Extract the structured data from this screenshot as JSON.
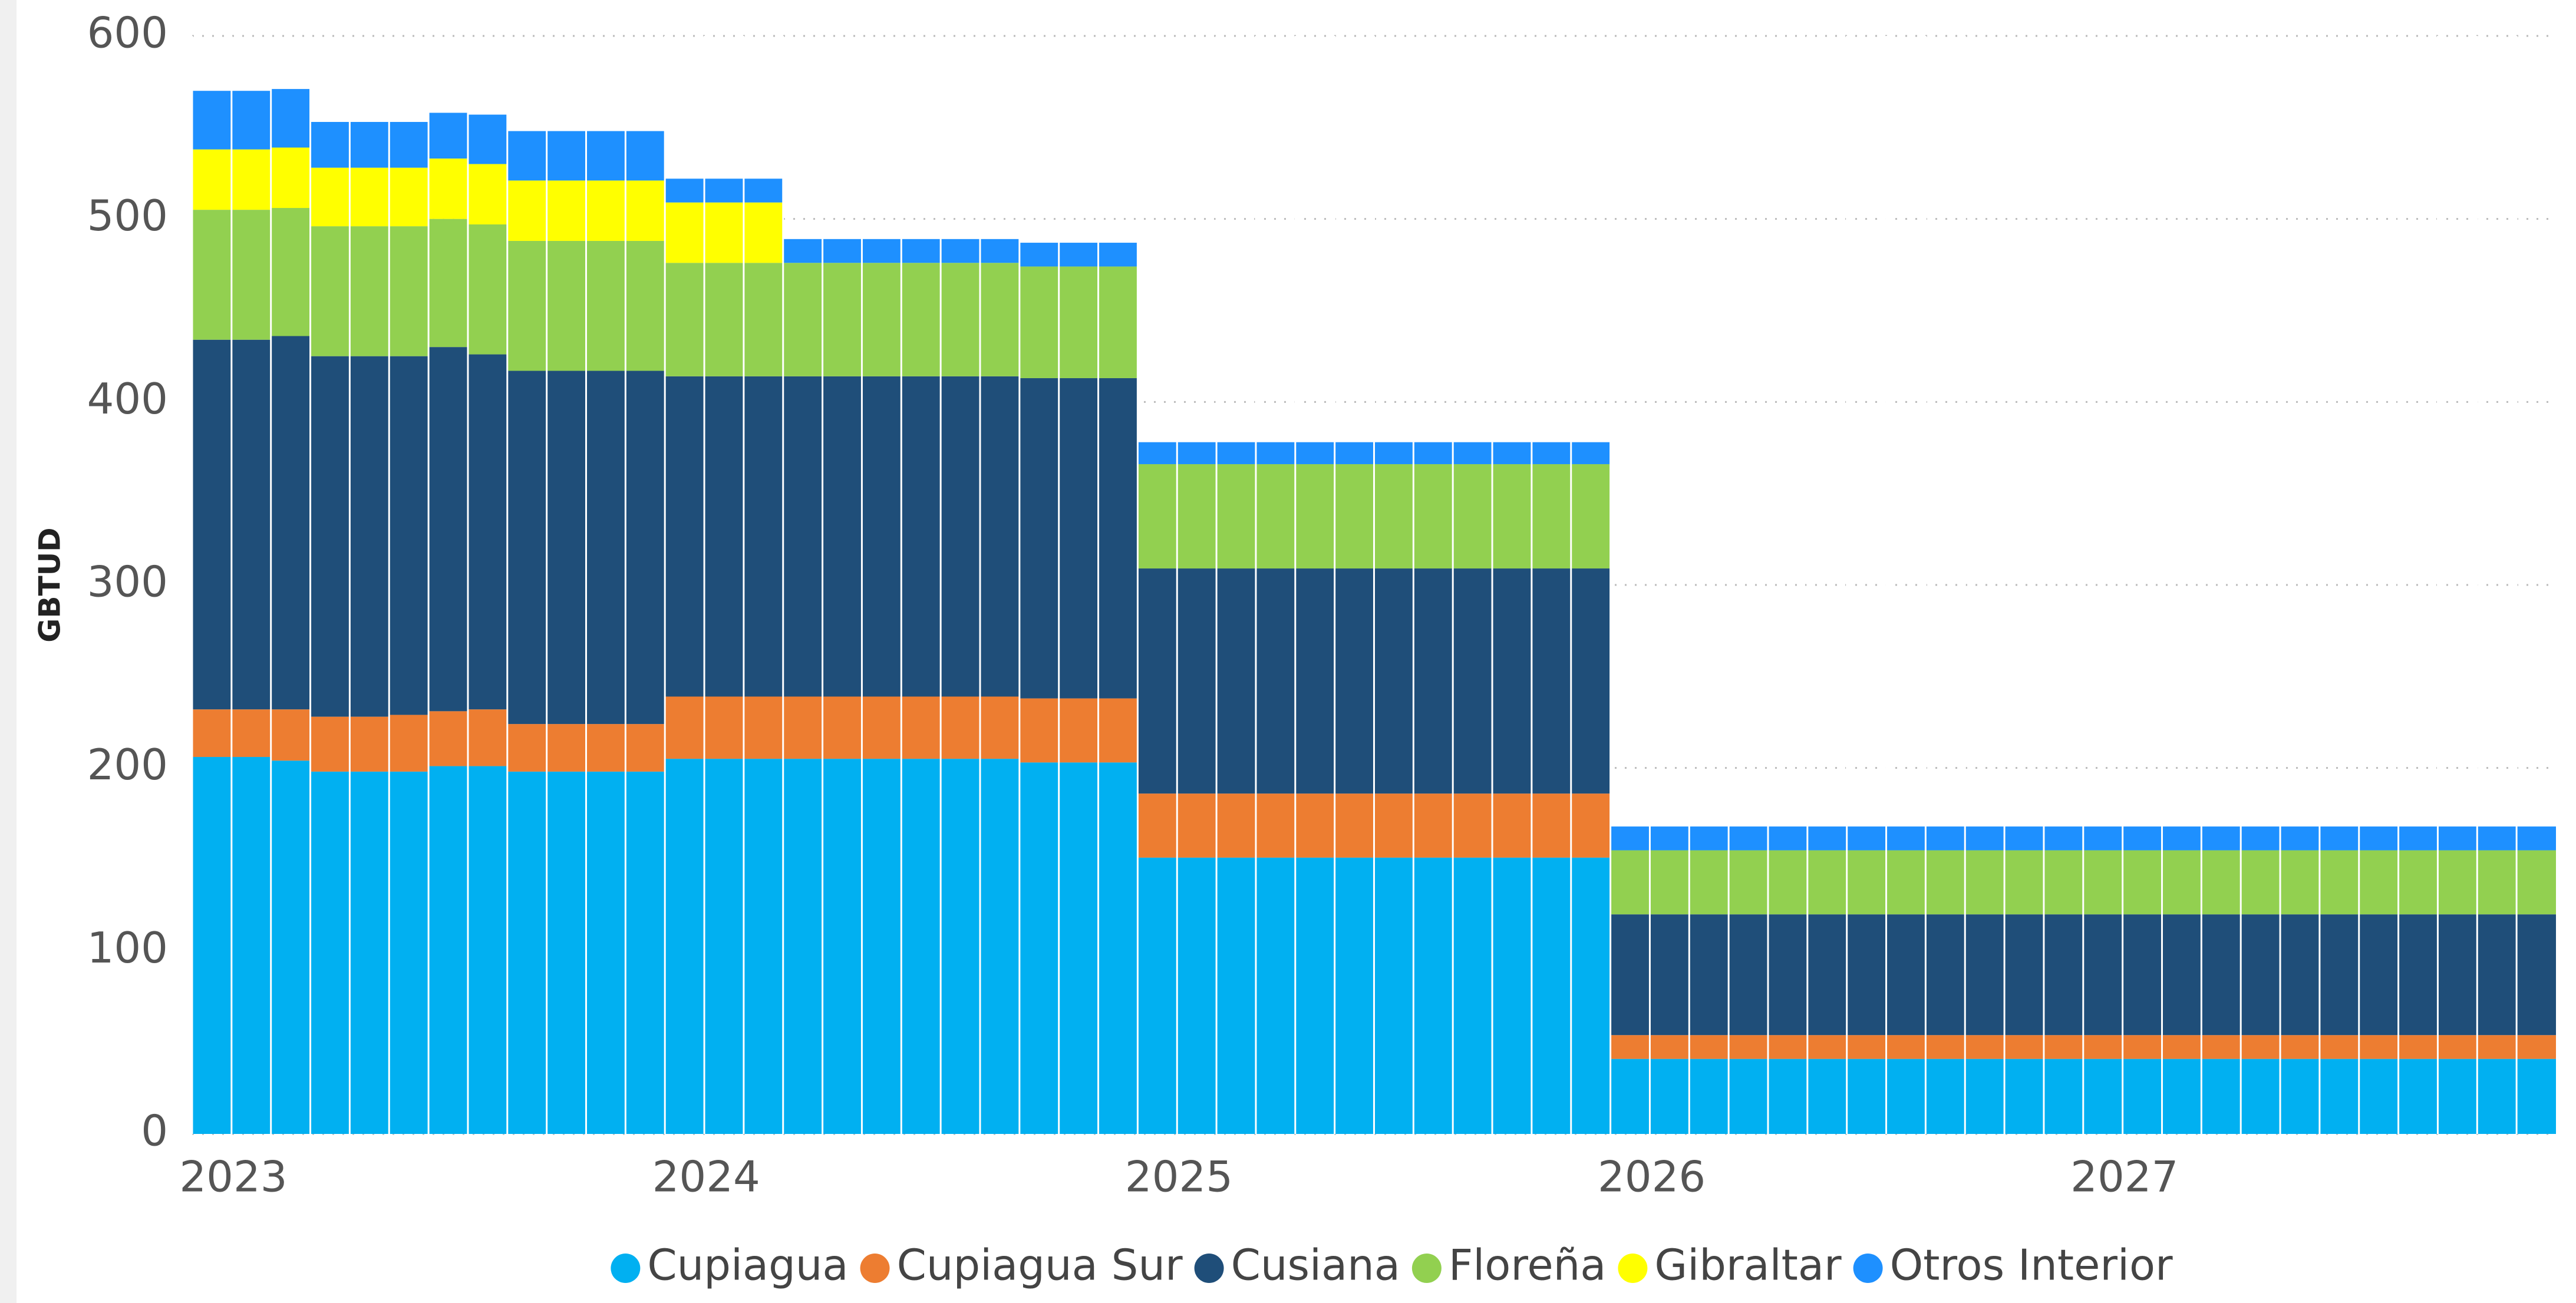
{
  "chart_data": {
    "type": "stacked_bar",
    "y_label": "GBTUD",
    "categories": [
      "2023",
      null,
      null,
      null,
      null,
      null,
      null,
      null,
      null,
      null,
      null,
      null,
      "2024",
      null,
      null,
      null,
      null,
      null,
      null,
      null,
      null,
      null,
      null,
      null,
      "2025",
      null,
      null,
      null,
      null,
      null,
      null,
      null,
      null,
      null,
      null,
      null,
      "2026",
      null,
      null,
      null,
      null,
      null,
      null,
      null,
      null,
      null,
      null,
      null,
      "2027",
      null,
      null,
      null,
      null,
      null,
      null,
      null,
      null,
      null,
      null,
      null
    ],
    "series": [
      {
        "name": "Cupiagua",
        "color": "#01B0F1",
        "values": [
          206,
          206,
          204,
          198,
          198,
          198,
          201,
          201,
          198,
          198,
          198,
          198,
          205,
          205,
          205,
          205,
          205,
          205,
          205,
          205,
          205,
          203,
          203,
          203,
          151,
          151,
          151,
          151,
          151,
          151,
          151,
          151,
          151,
          151,
          151,
          151,
          41,
          41,
          41,
          41,
          41,
          41,
          41,
          41,
          41,
          41,
          41,
          41,
          41,
          41,
          41,
          41,
          41,
          41,
          41,
          41,
          41,
          41,
          41,
          41
        ]
      },
      {
        "name": "Cupiagua Sur",
        "color": "#ED7D31",
        "values": [
          26,
          26,
          28,
          30,
          30,
          31,
          30,
          31,
          26,
          26,
          26,
          26,
          34,
          34,
          34,
          34,
          34,
          34,
          34,
          34,
          34,
          35,
          35,
          35,
          35,
          35,
          35,
          35,
          35,
          35,
          35,
          35,
          35,
          35,
          35,
          35,
          13,
          13,
          13,
          13,
          13,
          13,
          13,
          13,
          13,
          13,
          13,
          13,
          13,
          13,
          13,
          13,
          13,
          13,
          13,
          13,
          13,
          13,
          13,
          13
        ]
      },
      {
        "name": "Cusiana",
        "color": "#1F4E79",
        "values": [
          202,
          202,
          204,
          197,
          197,
          196,
          199,
          194,
          193,
          193,
          193,
          193,
          175,
          175,
          175,
          175,
          175,
          175,
          175,
          175,
          175,
          175,
          175,
          175,
          123,
          123,
          123,
          123,
          123,
          123,
          123,
          123,
          123,
          123,
          123,
          123,
          66,
          66,
          66,
          66,
          66,
          66,
          66,
          66,
          66,
          66,
          66,
          66,
          66,
          66,
          66,
          66,
          66,
          66,
          66,
          66,
          66,
          66,
          66,
          66
        ]
      },
      {
        "name": "Floreña",
        "color": "#92D050",
        "values": [
          71,
          71,
          70,
          71,
          71,
          71,
          70,
          71,
          71,
          71,
          71,
          71,
          62,
          62,
          62,
          62,
          62,
          62,
          62,
          62,
          62,
          61,
          61,
          61,
          57,
          57,
          57,
          57,
          57,
          57,
          57,
          57,
          57,
          57,
          57,
          57,
          35,
          35,
          35,
          35,
          35,
          35,
          35,
          35,
          35,
          35,
          35,
          35,
          35,
          35,
          35,
          35,
          35,
          35,
          35,
          35,
          35,
          35,
          35,
          35
        ]
      },
      {
        "name": "Gibraltar",
        "color": "#FFFF00",
        "values": [
          33,
          33,
          33,
          32,
          32,
          32,
          33,
          33,
          33,
          33,
          33,
          33,
          33,
          33,
          33,
          0,
          0,
          0,
          0,
          0,
          0,
          0,
          0,
          0,
          0,
          0,
          0,
          0,
          0,
          0,
          0,
          0,
          0,
          0,
          0,
          0,
          0,
          0,
          0,
          0,
          0,
          0,
          0,
          0,
          0,
          0,
          0,
          0,
          0,
          0,
          0,
          0,
          0,
          0,
          0,
          0,
          0,
          0,
          0,
          0
        ]
      },
      {
        "name": "Otros Interior",
        "color": "#1E90FF",
        "values": [
          32,
          32,
          32,
          25,
          25,
          25,
          25,
          27,
          27,
          27,
          27,
          27,
          13,
          13,
          13,
          13,
          13,
          13,
          13,
          13,
          13,
          13,
          13,
          13,
          12,
          12,
          12,
          12,
          12,
          12,
          12,
          12,
          12,
          12,
          12,
          12,
          13,
          13,
          13,
          13,
          13,
          13,
          13,
          13,
          13,
          13,
          13,
          13,
          13,
          13,
          13,
          13,
          13,
          13,
          13,
          13,
          13,
          13,
          13,
          13
        ]
      }
    ],
    "ylim": [
      0,
      600
    ],
    "yticks": [
      0,
      100,
      200,
      300,
      400,
      500,
      600
    ],
    "grid": true,
    "legend": "bottom"
  }
}
